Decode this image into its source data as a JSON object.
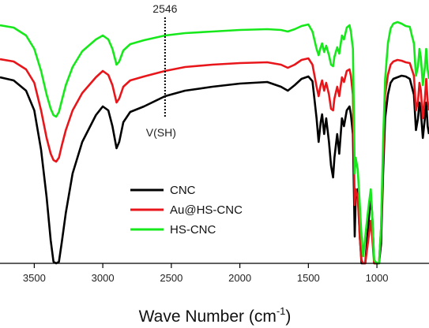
{
  "chart_data": {
    "type": "line",
    "title": "",
    "xlabel": "Wave Number (cm",
    "xlabel_sup": "-1",
    "xlabel_close": ")",
    "ylabel": "",
    "xlim": [
      3750,
      620
    ],
    "x_reversed": true,
    "x_ticks": [
      {
        "value": 3500,
        "label": "3500"
      },
      {
        "value": 3000,
        "label": "3000"
      },
      {
        "value": 2500,
        "label": "2500"
      },
      {
        "value": 2000,
        "label": "2000"
      },
      {
        "value": 1500,
        "label": "1500"
      },
      {
        "value": 1000,
        "label": "1000"
      }
    ],
    "y_ticks_shown": false,
    "grid": false,
    "legend_position": "bottom-center",
    "annotations": [
      {
        "text": "2546",
        "x": 2546,
        "position": "top"
      },
      {
        "text": "V(SH)",
        "x": 2546,
        "position": "below-line"
      }
    ],
    "series": [
      {
        "name": "CNC",
        "color": "#000000",
        "points": [
          [
            3750,
            98
          ],
          [
            3650,
            102
          ],
          [
            3560,
            115
          ],
          [
            3500,
            140
          ],
          [
            3450,
            190
          ],
          [
            3410,
            250
          ],
          [
            3380,
            305
          ],
          [
            3360,
            332
          ],
          [
            3340,
            340
          ],
          [
            3320,
            332
          ],
          [
            3300,
            308
          ],
          [
            3270,
            270
          ],
          [
            3220,
            220
          ],
          [
            3150,
            180
          ],
          [
            3050,
            146
          ],
          [
            3000,
            135
          ],
          [
            2960,
            140
          ],
          [
            2930,
            160
          ],
          [
            2900,
            188
          ],
          [
            2880,
            180
          ],
          [
            2850,
            155
          ],
          [
            2800,
            142
          ],
          [
            2700,
            135
          ],
          [
            2546,
            122
          ],
          [
            2400,
            115
          ],
          [
            2200,
            110
          ],
          [
            2000,
            106
          ],
          [
            1800,
            104
          ],
          [
            1700,
            110
          ],
          [
            1650,
            115
          ],
          [
            1600,
            108
          ],
          [
            1550,
            100
          ],
          [
            1500,
            97
          ],
          [
            1470,
            103
          ],
          [
            1440,
            150
          ],
          [
            1425,
            180
          ],
          [
            1410,
            155
          ],
          [
            1400,
            145
          ],
          [
            1385,
            170
          ],
          [
            1370,
            150
          ],
          [
            1350,
            180
          ],
          [
            1335,
            210
          ],
          [
            1320,
            225
          ],
          [
            1310,
            200
          ],
          [
            1290,
            170
          ],
          [
            1275,
            195
          ],
          [
            1255,
            150
          ],
          [
            1240,
            160
          ],
          [
            1220,
            140
          ],
          [
            1200,
            135
          ],
          [
            1190,
            145
          ],
          [
            1175,
            170
          ],
          [
            1162,
            300
          ],
          [
            1155,
            250
          ],
          [
            1140,
            240
          ],
          [
            1125,
            300
          ],
          [
            1112,
            340
          ],
          [
            1100,
            340
          ],
          [
            1085,
            345
          ],
          [
            1060,
            280
          ],
          [
            1045,
            250
          ],
          [
            1035,
            270
          ],
          [
            1020,
            340
          ],
          [
            1000,
            345
          ],
          [
            985,
            340
          ],
          [
            970,
            310
          ],
          [
            955,
            220
          ],
          [
            940,
            150
          ],
          [
            920,
            120
          ],
          [
            900,
            105
          ],
          [
            880,
            100
          ],
          [
            850,
            98
          ],
          [
            820,
            96
          ],
          [
            790,
            97
          ],
          [
            760,
            100
          ],
          [
            745,
            110
          ],
          [
            730,
            120
          ],
          [
            715,
            165
          ],
          [
            700,
            150
          ],
          [
            690,
            130
          ],
          [
            680,
            140
          ],
          [
            665,
            175
          ],
          [
            650,
            150
          ],
          [
            640,
            130
          ],
          [
            630,
            160
          ],
          [
            620,
            170
          ]
        ]
      },
      {
        "name": "Au@HS-CNC",
        "color": "#e8161b",
        "points": [
          [
            3750,
            75
          ],
          [
            3650,
            78
          ],
          [
            3560,
            88
          ],
          [
            3500,
            105
          ],
          [
            3450,
            140
          ],
          [
            3410,
            175
          ],
          [
            3380,
            195
          ],
          [
            3360,
            203
          ],
          [
            3340,
            205
          ],
          [
            3320,
            200
          ],
          [
            3300,
            185
          ],
          [
            3270,
            165
          ],
          [
            3220,
            140
          ],
          [
            3150,
            118
          ],
          [
            3050,
            98
          ],
          [
            3000,
            90
          ],
          [
            2960,
            95
          ],
          [
            2930,
            108
          ],
          [
            2900,
            130
          ],
          [
            2880,
            125
          ],
          [
            2850,
            110
          ],
          [
            2800,
            102
          ],
          [
            2700,
            97
          ],
          [
            2546,
            90
          ],
          [
            2400,
            85
          ],
          [
            2200,
            82
          ],
          [
            2000,
            80
          ],
          [
            1800,
            79
          ],
          [
            1700,
            82
          ],
          [
            1650,
            86
          ],
          [
            1600,
            82
          ],
          [
            1550,
            76
          ],
          [
            1500,
            74
          ],
          [
            1470,
            82
          ],
          [
            1440,
            110
          ],
          [
            1425,
            122
          ],
          [
            1410,
            108
          ],
          [
            1400,
            102
          ],
          [
            1385,
            115
          ],
          [
            1370,
            105
          ],
          [
            1350,
            120
          ],
          [
            1335,
            138
          ],
          [
            1320,
            140
          ],
          [
            1310,
            125
          ],
          [
            1290,
            110
          ],
          [
            1275,
            122
          ],
          [
            1255,
            98
          ],
          [
            1240,
            104
          ],
          [
            1220,
            90
          ],
          [
            1200,
            88
          ],
          [
            1190,
            96
          ],
          [
            1175,
            120
          ],
          [
            1162,
            260
          ],
          [
            1155,
            240
          ],
          [
            1140,
            250
          ],
          [
            1125,
            300
          ],
          [
            1112,
            330
          ],
          [
            1100,
            340
          ],
          [
            1085,
            345
          ],
          [
            1060,
            300
          ],
          [
            1045,
            280
          ],
          [
            1035,
            300
          ],
          [
            1020,
            340
          ],
          [
            1000,
            345
          ],
          [
            985,
            340
          ],
          [
            970,
            290
          ],
          [
            955,
            200
          ],
          [
            940,
            120
          ],
          [
            920,
            95
          ],
          [
            900,
            82
          ],
          [
            880,
            78
          ],
          [
            850,
            76
          ],
          [
            820,
            77
          ],
          [
            790,
            79
          ],
          [
            760,
            80
          ],
          [
            745,
            88
          ],
          [
            730,
            96
          ],
          [
            715,
            140
          ],
          [
            700,
            128
          ],
          [
            690,
            105
          ],
          [
            680,
            114
          ],
          [
            665,
            150
          ],
          [
            650,
            125
          ],
          [
            640,
            100
          ],
          [
            630,
            128
          ],
          [
            620,
            140
          ]
        ]
      },
      {
        "name": "HS-CNC",
        "color": "#16e81b",
        "points": [
          [
            3750,
            32
          ],
          [
            3650,
            35
          ],
          [
            3560,
            45
          ],
          [
            3500,
            62
          ],
          [
            3450,
            90
          ],
          [
            3410,
            120
          ],
          [
            3380,
            138
          ],
          [
            3360,
            146
          ],
          [
            3340,
            148
          ],
          [
            3320,
            142
          ],
          [
            3300,
            128
          ],
          [
            3270,
            108
          ],
          [
            3220,
            85
          ],
          [
            3150,
            65
          ],
          [
            3050,
            50
          ],
          [
            3000,
            45
          ],
          [
            2960,
            50
          ],
          [
            2930,
            62
          ],
          [
            2900,
            82
          ],
          [
            2880,
            78
          ],
          [
            2850,
            64
          ],
          [
            2800,
            56
          ],
          [
            2700,
            51
          ],
          [
            2546,
            45
          ],
          [
            2400,
            42
          ],
          [
            2200,
            40
          ],
          [
            2000,
            38
          ],
          [
            1800,
            37
          ],
          [
            1700,
            38
          ],
          [
            1650,
            40
          ],
          [
            1600,
            37
          ],
          [
            1550,
            33
          ],
          [
            1500,
            31
          ],
          [
            1470,
            40
          ],
          [
            1440,
            62
          ],
          [
            1425,
            70
          ],
          [
            1410,
            60
          ],
          [
            1400,
            55
          ],
          [
            1385,
            66
          ],
          [
            1370,
            58
          ],
          [
            1350,
            70
          ],
          [
            1335,
            82
          ],
          [
            1320,
            84
          ],
          [
            1310,
            72
          ],
          [
            1290,
            60
          ],
          [
            1275,
            68
          ],
          [
            1255,
            45
          ],
          [
            1240,
            50
          ],
          [
            1220,
            35
          ],
          [
            1200,
            32
          ],
          [
            1190,
            40
          ],
          [
            1175,
            62
          ],
          [
            1162,
            220
          ],
          [
            1155,
            200
          ],
          [
            1140,
            215
          ],
          [
            1125,
            260
          ],
          [
            1112,
            300
          ],
          [
            1100,
            325
          ],
          [
            1085,
            300
          ],
          [
            1060,
            260
          ],
          [
            1045,
            240
          ],
          [
            1035,
            270
          ],
          [
            1020,
            330
          ],
          [
            1000,
            345
          ],
          [
            985,
            340
          ],
          [
            970,
            290
          ],
          [
            955,
            180
          ],
          [
            940,
            100
          ],
          [
            920,
            55
          ],
          [
            900,
            36
          ],
          [
            880,
            30
          ],
          [
            850,
            28
          ],
          [
            820,
            30
          ],
          [
            790,
            33
          ],
          [
            760,
            34
          ],
          [
            745,
            45
          ],
          [
            730,
            55
          ],
          [
            715,
            96
          ],
          [
            700,
            84
          ],
          [
            690,
            62
          ],
          [
            680,
            72
          ],
          [
            665,
            108
          ],
          [
            650,
            85
          ],
          [
            640,
            62
          ],
          [
            630,
            88
          ],
          [
            620,
            100
          ]
        ]
      }
    ]
  }
}
